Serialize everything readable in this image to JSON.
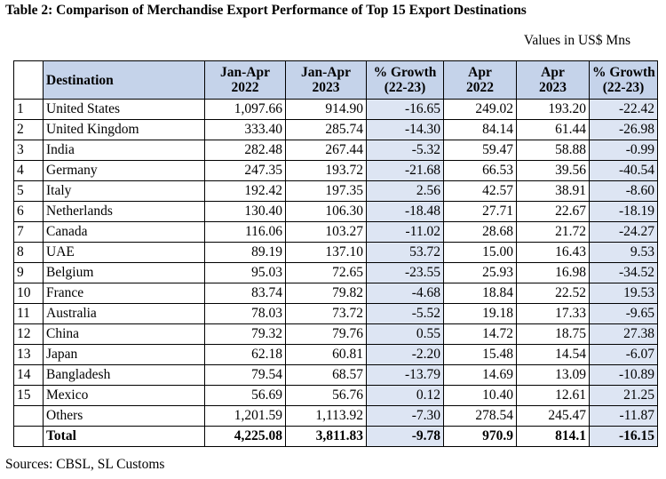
{
  "title": "Table 2: Comparison of Merchandise Export Performance of Top 15 Export Destinations",
  "units": "Values in US$ Mns",
  "headers": {
    "destination": "Destination",
    "jan_apr_2022": [
      "Jan-Apr",
      "2022"
    ],
    "jan_apr_2023": [
      "Jan-Apr",
      "2023"
    ],
    "growth_ytd": [
      "% Growth",
      "(22-23)"
    ],
    "apr_2022": [
      "Apr",
      "2022"
    ],
    "apr_2023": [
      "Apr",
      "2023"
    ],
    "growth_apr": [
      "% Growth",
      "(22-23)"
    ]
  },
  "rows": [
    {
      "idx": "1",
      "name": "United States",
      "v": [
        "1,097.66",
        "914.90",
        "-16.65",
        "249.02",
        "193.20",
        "-22.42"
      ]
    },
    {
      "idx": "2",
      "name": "United Kingdom",
      "v": [
        "333.40",
        "285.74",
        "-14.30",
        "84.14",
        "61.44",
        "-26.98"
      ]
    },
    {
      "idx": "3",
      "name": "India",
      "v": [
        "282.48",
        "267.44",
        "-5.32",
        "59.47",
        "58.88",
        "-0.99"
      ]
    },
    {
      "idx": "4",
      "name": "Germany",
      "v": [
        "247.35",
        "193.72",
        "-21.68",
        "66.53",
        "39.56",
        "-40.54"
      ]
    },
    {
      "idx": "5",
      "name": "Italy",
      "v": [
        "192.42",
        "197.35",
        "2.56",
        "42.57",
        "38.91",
        "-8.60"
      ]
    },
    {
      "idx": "6",
      "name": "Netherlands",
      "v": [
        "130.40",
        "106.30",
        "-18.48",
        "27.71",
        "22.67",
        "-18.19"
      ]
    },
    {
      "idx": "7",
      "name": "Canada",
      "v": [
        "116.06",
        "103.27",
        "-11.02",
        "28.68",
        "21.72",
        "-24.27"
      ]
    },
    {
      "idx": "8",
      "name": "UAE",
      "v": [
        "89.19",
        "137.10",
        "53.72",
        "15.00",
        "16.43",
        "9.53"
      ]
    },
    {
      "idx": "9",
      "name": "Belgium",
      "v": [
        "95.03",
        "72.65",
        "-23.55",
        "25.93",
        "16.98",
        "-34.52"
      ]
    },
    {
      "idx": "10",
      "name": "France",
      "v": [
        "83.74",
        "79.82",
        "-4.68",
        "18.84",
        "22.52",
        "19.53"
      ]
    },
    {
      "idx": "11",
      "name": "Australia",
      "v": [
        "78.03",
        "73.72",
        "-5.52",
        "19.18",
        "17.33",
        "-9.65"
      ]
    },
    {
      "idx": "12",
      "name": "China",
      "v": [
        "79.32",
        "79.76",
        "0.55",
        "14.72",
        "18.75",
        "27.38"
      ]
    },
    {
      "idx": "13",
      "name": "Japan",
      "v": [
        "62.18",
        "60.81",
        "-2.20",
        "15.48",
        "14.54",
        "-6.07"
      ]
    },
    {
      "idx": "14",
      "name": "Bangladesh",
      "v": [
        "79.54",
        "68.57",
        "-13.79",
        "14.69",
        "13.09",
        "-10.89"
      ]
    },
    {
      "idx": "15",
      "name": "Mexico",
      "v": [
        "56.69",
        "56.76",
        "0.12",
        "10.40",
        "12.61",
        "21.25"
      ]
    },
    {
      "idx": "",
      "name": "Others",
      "v": [
        "1,201.59",
        "1,113.92",
        "-7.30",
        "278.54",
        "245.47",
        "-11.87"
      ]
    }
  ],
  "total": {
    "name": "Total",
    "v": [
      "4,225.08",
      "3,811.83",
      "-9.78",
      "970.9",
      "814.1",
      "-16.15"
    ]
  },
  "sources": "Sources: CBSL, SL Customs",
  "colors": {
    "header_bg": "#c5d3ea",
    "growth_bg": "#dde5f3"
  }
}
